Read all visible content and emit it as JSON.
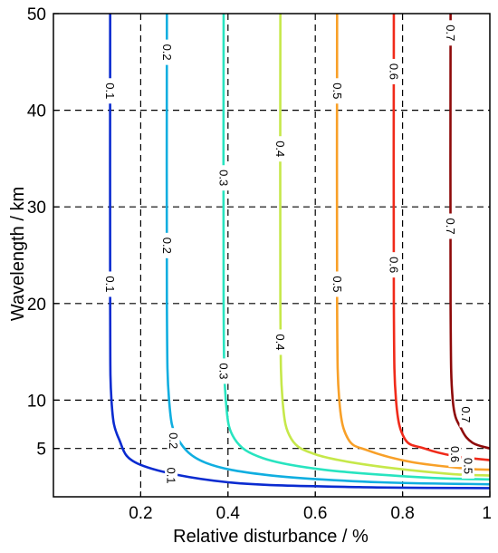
{
  "chart_data": {
    "type": "contour",
    "xlabel": "Relative disturbance / %",
    "ylabel": "Wavelength / km",
    "xlim": [
      0,
      1
    ],
    "ylim": [
      0,
      50
    ],
    "x_ticks": [
      {
        "value": 0.2,
        "label": "0.2"
      },
      {
        "value": 0.4,
        "label": "0.4"
      },
      {
        "value": 0.6,
        "label": "0.6"
      },
      {
        "value": 0.8,
        "label": "0.8"
      },
      {
        "value": 1.0,
        "label": "1"
      }
    ],
    "y_ticks": [
      {
        "value": 5,
        "label": "5"
      },
      {
        "value": 10,
        "label": "10"
      },
      {
        "value": 20,
        "label": "20"
      },
      {
        "value": 30,
        "label": "30"
      },
      {
        "value": 40,
        "label": "40"
      },
      {
        "value": 50,
        "label": "50"
      }
    ],
    "grid": {
      "style": "dashed",
      "x": [
        0.2,
        0.4,
        0.6,
        0.8
      ],
      "y": [
        5,
        10,
        20,
        30,
        40
      ]
    },
    "series": [
      {
        "level": "0.1",
        "color": "#0a2bd0",
        "points": [
          [
            0.13,
            50
          ],
          [
            0.13,
            20
          ],
          [
            0.133,
            10
          ],
          [
            0.15,
            6
          ],
          [
            0.2,
            3.3
          ],
          [
            0.4,
            1.5
          ],
          [
            0.7,
            1.0
          ],
          [
            1.0,
            0.9
          ]
        ],
        "labels": [
          [
            0.13,
            42
          ],
          [
            0.13,
            22
          ],
          [
            0.27,
            2.2
          ]
        ]
      },
      {
        "level": "0.2",
        "color": "#10aee0",
        "points": [
          [
            0.26,
            50
          ],
          [
            0.26,
            20
          ],
          [
            0.265,
            10
          ],
          [
            0.285,
            6
          ],
          [
            0.35,
            3.5
          ],
          [
            0.5,
            2.2
          ],
          [
            0.75,
            1.5
          ],
          [
            1.0,
            1.3
          ]
        ],
        "labels": [
          [
            0.26,
            46
          ],
          [
            0.26,
            26
          ],
          [
            0.275,
            5.8
          ]
        ]
      },
      {
        "level": "0.3",
        "color": "#28e4c0",
        "points": [
          [
            0.39,
            50
          ],
          [
            0.39,
            20
          ],
          [
            0.395,
            10
          ],
          [
            0.415,
            6
          ],
          [
            0.48,
            4.0
          ],
          [
            0.62,
            2.8
          ],
          [
            0.85,
            2.0
          ],
          [
            1.0,
            1.8
          ]
        ],
        "labels": [
          [
            0.39,
            33
          ],
          [
            0.39,
            13
          ]
        ]
      },
      {
        "level": "0.4",
        "color": "#c6e84a",
        "points": [
          [
            0.52,
            50
          ],
          [
            0.52,
            20
          ],
          [
            0.525,
            10
          ],
          [
            0.545,
            6
          ],
          [
            0.6,
            4.4
          ],
          [
            0.72,
            3.3
          ],
          [
            0.9,
            2.4
          ],
          [
            1.0,
            2.2
          ]
        ],
        "labels": [
          [
            0.52,
            36
          ],
          [
            0.52,
            16
          ]
        ]
      },
      {
        "level": "0.5",
        "color": "#f8a028",
        "points": [
          [
            0.65,
            50
          ],
          [
            0.65,
            20
          ],
          [
            0.655,
            10
          ],
          [
            0.675,
            6
          ],
          [
            0.72,
            4.8
          ],
          [
            0.82,
            3.6
          ],
          [
            0.95,
            2.9
          ],
          [
            1.0,
            2.8
          ]
        ],
        "labels": [
          [
            0.65,
            42
          ],
          [
            0.65,
            22
          ],
          [
            0.95,
            3.2
          ]
        ]
      },
      {
        "level": "0.6",
        "color": "#f02a1a",
        "points": [
          [
            0.78,
            50
          ],
          [
            0.78,
            20
          ],
          [
            0.785,
            10
          ],
          [
            0.805,
            6
          ],
          [
            0.85,
            5.0
          ],
          [
            0.92,
            4.2
          ],
          [
            1.0,
            3.8
          ]
        ],
        "labels": [
          [
            0.78,
            44
          ],
          [
            0.78,
            24
          ],
          [
            0.92,
            4.4
          ]
        ]
      },
      {
        "level": "0.7",
        "color": "#8e0a0a",
        "points": [
          [
            0.91,
            50
          ],
          [
            0.91,
            20
          ],
          [
            0.915,
            10
          ],
          [
            0.935,
            7
          ],
          [
            0.96,
            5.6
          ],
          [
            1.0,
            5.0
          ]
        ],
        "labels": [
          [
            0.91,
            48
          ],
          [
            0.91,
            28
          ],
          [
            0.945,
            8.5
          ]
        ]
      }
    ]
  }
}
